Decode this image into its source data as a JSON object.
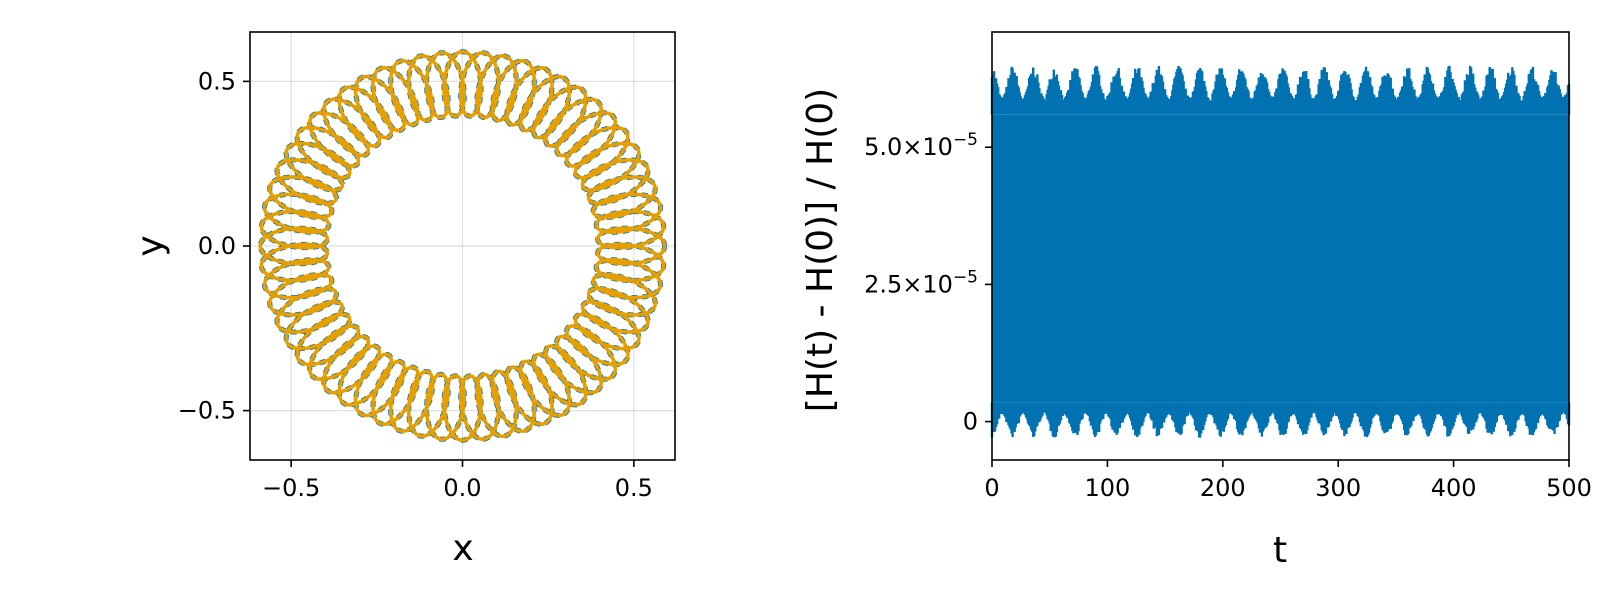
{
  "chart_data": [
    {
      "type": "line",
      "title": "",
      "xlabel": "x",
      "ylabel": "y",
      "xlim": [
        -0.62,
        0.62
      ],
      "ylim": [
        -0.65,
        0.65
      ],
      "aspect": "equal",
      "grid": true,
      "x_ticks": [
        {
          "value": -0.5,
          "label": "−0.5"
        },
        {
          "value": 0.0,
          "label": "0.0"
        },
        {
          "value": 0.5,
          "label": "0.5"
        }
      ],
      "y_ticks": [
        {
          "value": 0.5,
          "label": "0.5"
        },
        {
          "value": 0.0,
          "label": "0.0"
        },
        {
          "value": -0.5,
          "label": "−0.5"
        }
      ],
      "series": [
        {
          "style": "dashed",
          "color": "#0072b2",
          "description_params": {
            "orbit": "rosette",
            "radius_min": 0.395,
            "radius_max": 0.59,
            "lobes": 60
          }
        },
        {
          "style": "solid",
          "color": "#e69f00",
          "description_params": {
            "orbit": "rosette",
            "radius_min": 0.395,
            "radius_max": 0.59,
            "lobes": 60
          }
        }
      ]
    },
    {
      "type": "area",
      "title": "",
      "xlabel": "t",
      "ylabel": "[H(t) - H(0)] / H(0)",
      "xlim": [
        0,
        500
      ],
      "ylim": [
        -7e-06,
        7.1e-05
      ],
      "grid": false,
      "x_ticks": [
        {
          "value": 0,
          "label": "0"
        },
        {
          "value": 100,
          "label": "100"
        },
        {
          "value": 200,
          "label": "200"
        },
        {
          "value": 300,
          "label": "300"
        },
        {
          "value": 400,
          "label": "400"
        },
        {
          "value": 500,
          "label": "500"
        }
      ],
      "y_ticks": [
        {
          "value": 5e-05,
          "mantissa": "5.0×10",
          "exponent": "−5"
        },
        {
          "value": 2.5e-05,
          "mantissa": "2.5×10",
          "exponent": "−5"
        },
        {
          "value": 0,
          "mantissa": "0",
          "exponent": ""
        }
      ],
      "series": [
        {
          "color": "#0072b2",
          "band_low": 3.5e-06,
          "band_high": 5.6e-05,
          "min_extreme": -3e-06,
          "max_extreme": 6.5e-05,
          "beat_period": 18
        }
      ]
    }
  ]
}
